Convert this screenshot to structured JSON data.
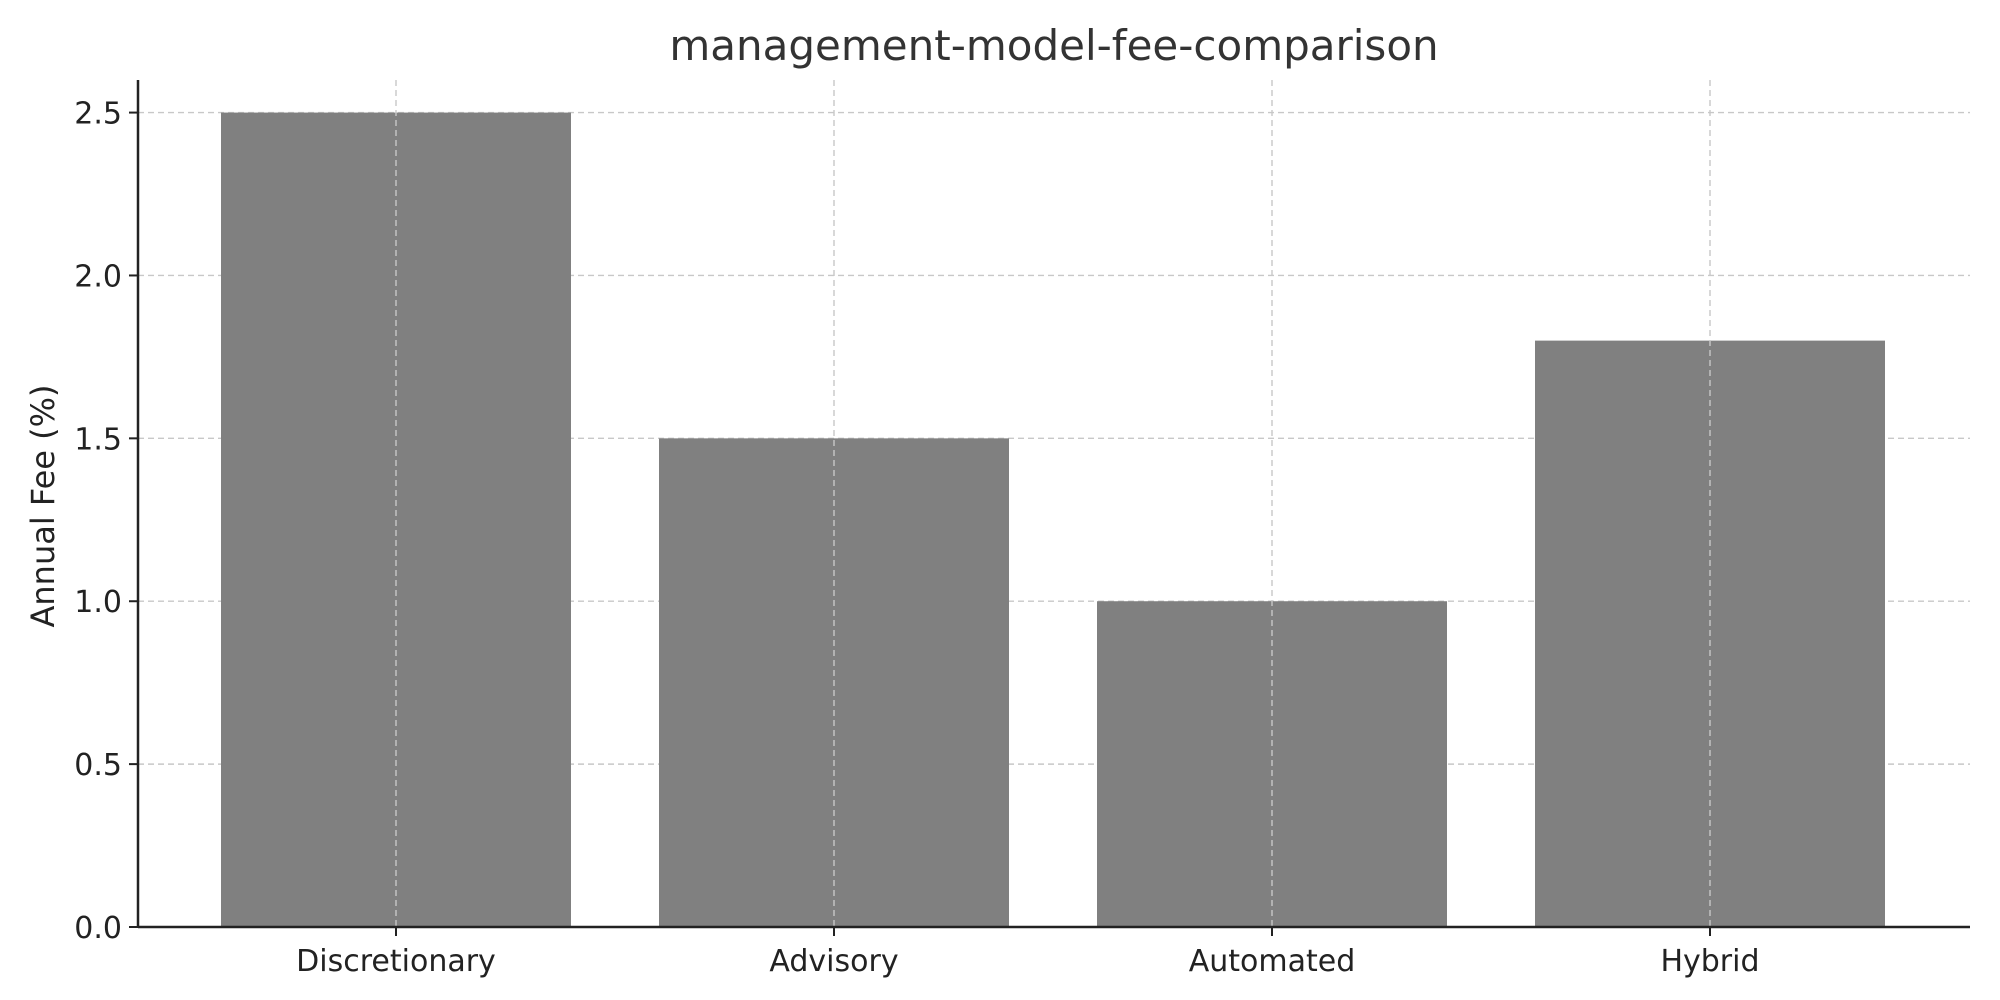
{
  "chart_data": {
    "type": "bar",
    "title": "management-model-fee-comparison",
    "xlabel": "",
    "ylabel": "Annual Fee (%)",
    "categories": [
      "Discretionary",
      "Advisory",
      "Automated",
      "Hybrid"
    ],
    "values": [
      2.5,
      1.5,
      1.0,
      1.8
    ],
    "ylim": [
      0,
      2.6
    ],
    "yticks": [
      "0.0",
      "0.5",
      "1.0",
      "1.5",
      "2.0",
      "2.5"
    ],
    "bar_color": "#808080",
    "grid": true,
    "legend": "none"
  }
}
